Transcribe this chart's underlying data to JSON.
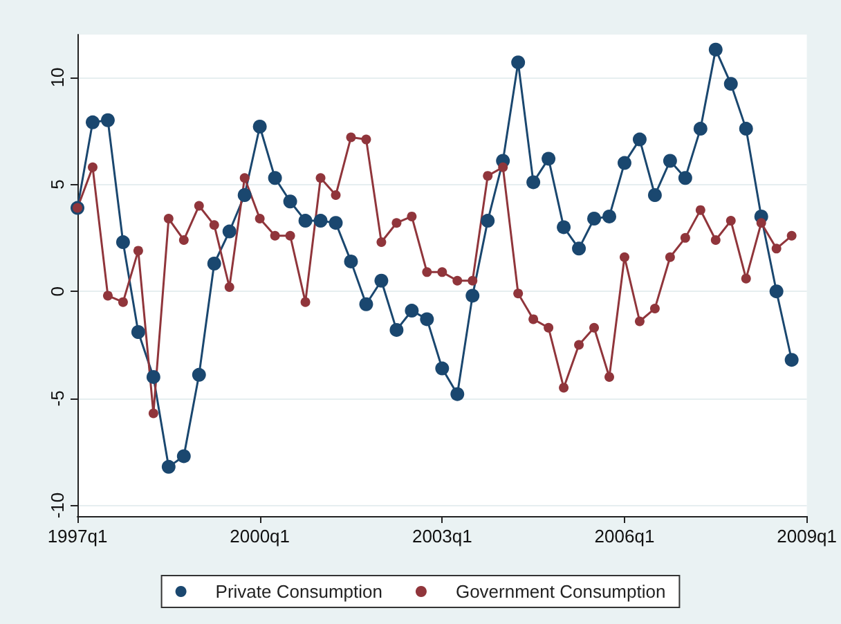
{
  "chart_data": {
    "type": "line",
    "categories": [
      "1997q1",
      null,
      null,
      null,
      null,
      null,
      null,
      null,
      null,
      null,
      null,
      null,
      "2000q1",
      null,
      null,
      null,
      null,
      null,
      null,
      null,
      null,
      null,
      null,
      null,
      "2003q1",
      null,
      null,
      null,
      null,
      null,
      null,
      null,
      null,
      null,
      null,
      null,
      "2006q1",
      null,
      null,
      null,
      null,
      null,
      null,
      null,
      null,
      null,
      null,
      null,
      "2009q1"
    ],
    "series": [
      {
        "name": "Private Consumption",
        "color": "#1a476f",
        "values": [
          3.9,
          7.9,
          8.0,
          2.3,
          -1.9,
          -4.0,
          -8.2,
          -7.7,
          -3.9,
          1.3,
          2.8,
          4.5,
          7.7,
          5.3,
          4.2,
          3.3,
          3.3,
          3.2,
          1.4,
          -0.6,
          0.5,
          -1.8,
          -0.9,
          -1.3,
          -3.6,
          -4.8,
          -0.2,
          3.3,
          6.1,
          10.7,
          5.1,
          6.2,
          3.0,
          2.0,
          3.4,
          3.5,
          6.0,
          7.1,
          4.5,
          6.1,
          5.3,
          7.6,
          11.3,
          9.7,
          7.6,
          3.5,
          0.0,
          -3.2,
          null
        ]
      },
      {
        "name": "Government Consumption",
        "color": "#90353b",
        "values": [
          3.9,
          5.8,
          -0.2,
          -0.5,
          1.9,
          -5.7,
          3.4,
          2.4,
          4.0,
          3.1,
          0.2,
          5.3,
          3.4,
          2.6,
          2.6,
          -0.5,
          5.3,
          4.5,
          7.2,
          7.1,
          2.3,
          3.2,
          3.5,
          0.9,
          0.9,
          0.5,
          0.5,
          5.4,
          5.8,
          -0.1,
          -1.3,
          -1.7,
          -4.5,
          -2.5,
          -1.7,
          -4.0,
          1.6,
          -1.4,
          -0.8,
          1.6,
          2.5,
          3.8,
          2.4,
          3.3,
          0.6,
          3.2,
          2.0,
          2.6,
          null
        ]
      }
    ],
    "ylim": [
      -10.5,
      12
    ],
    "yticks": [
      -10,
      -5,
      0,
      5,
      10
    ],
    "grid": "y",
    "legend": "bottom",
    "marker": "circle",
    "line_style": "solid"
  }
}
